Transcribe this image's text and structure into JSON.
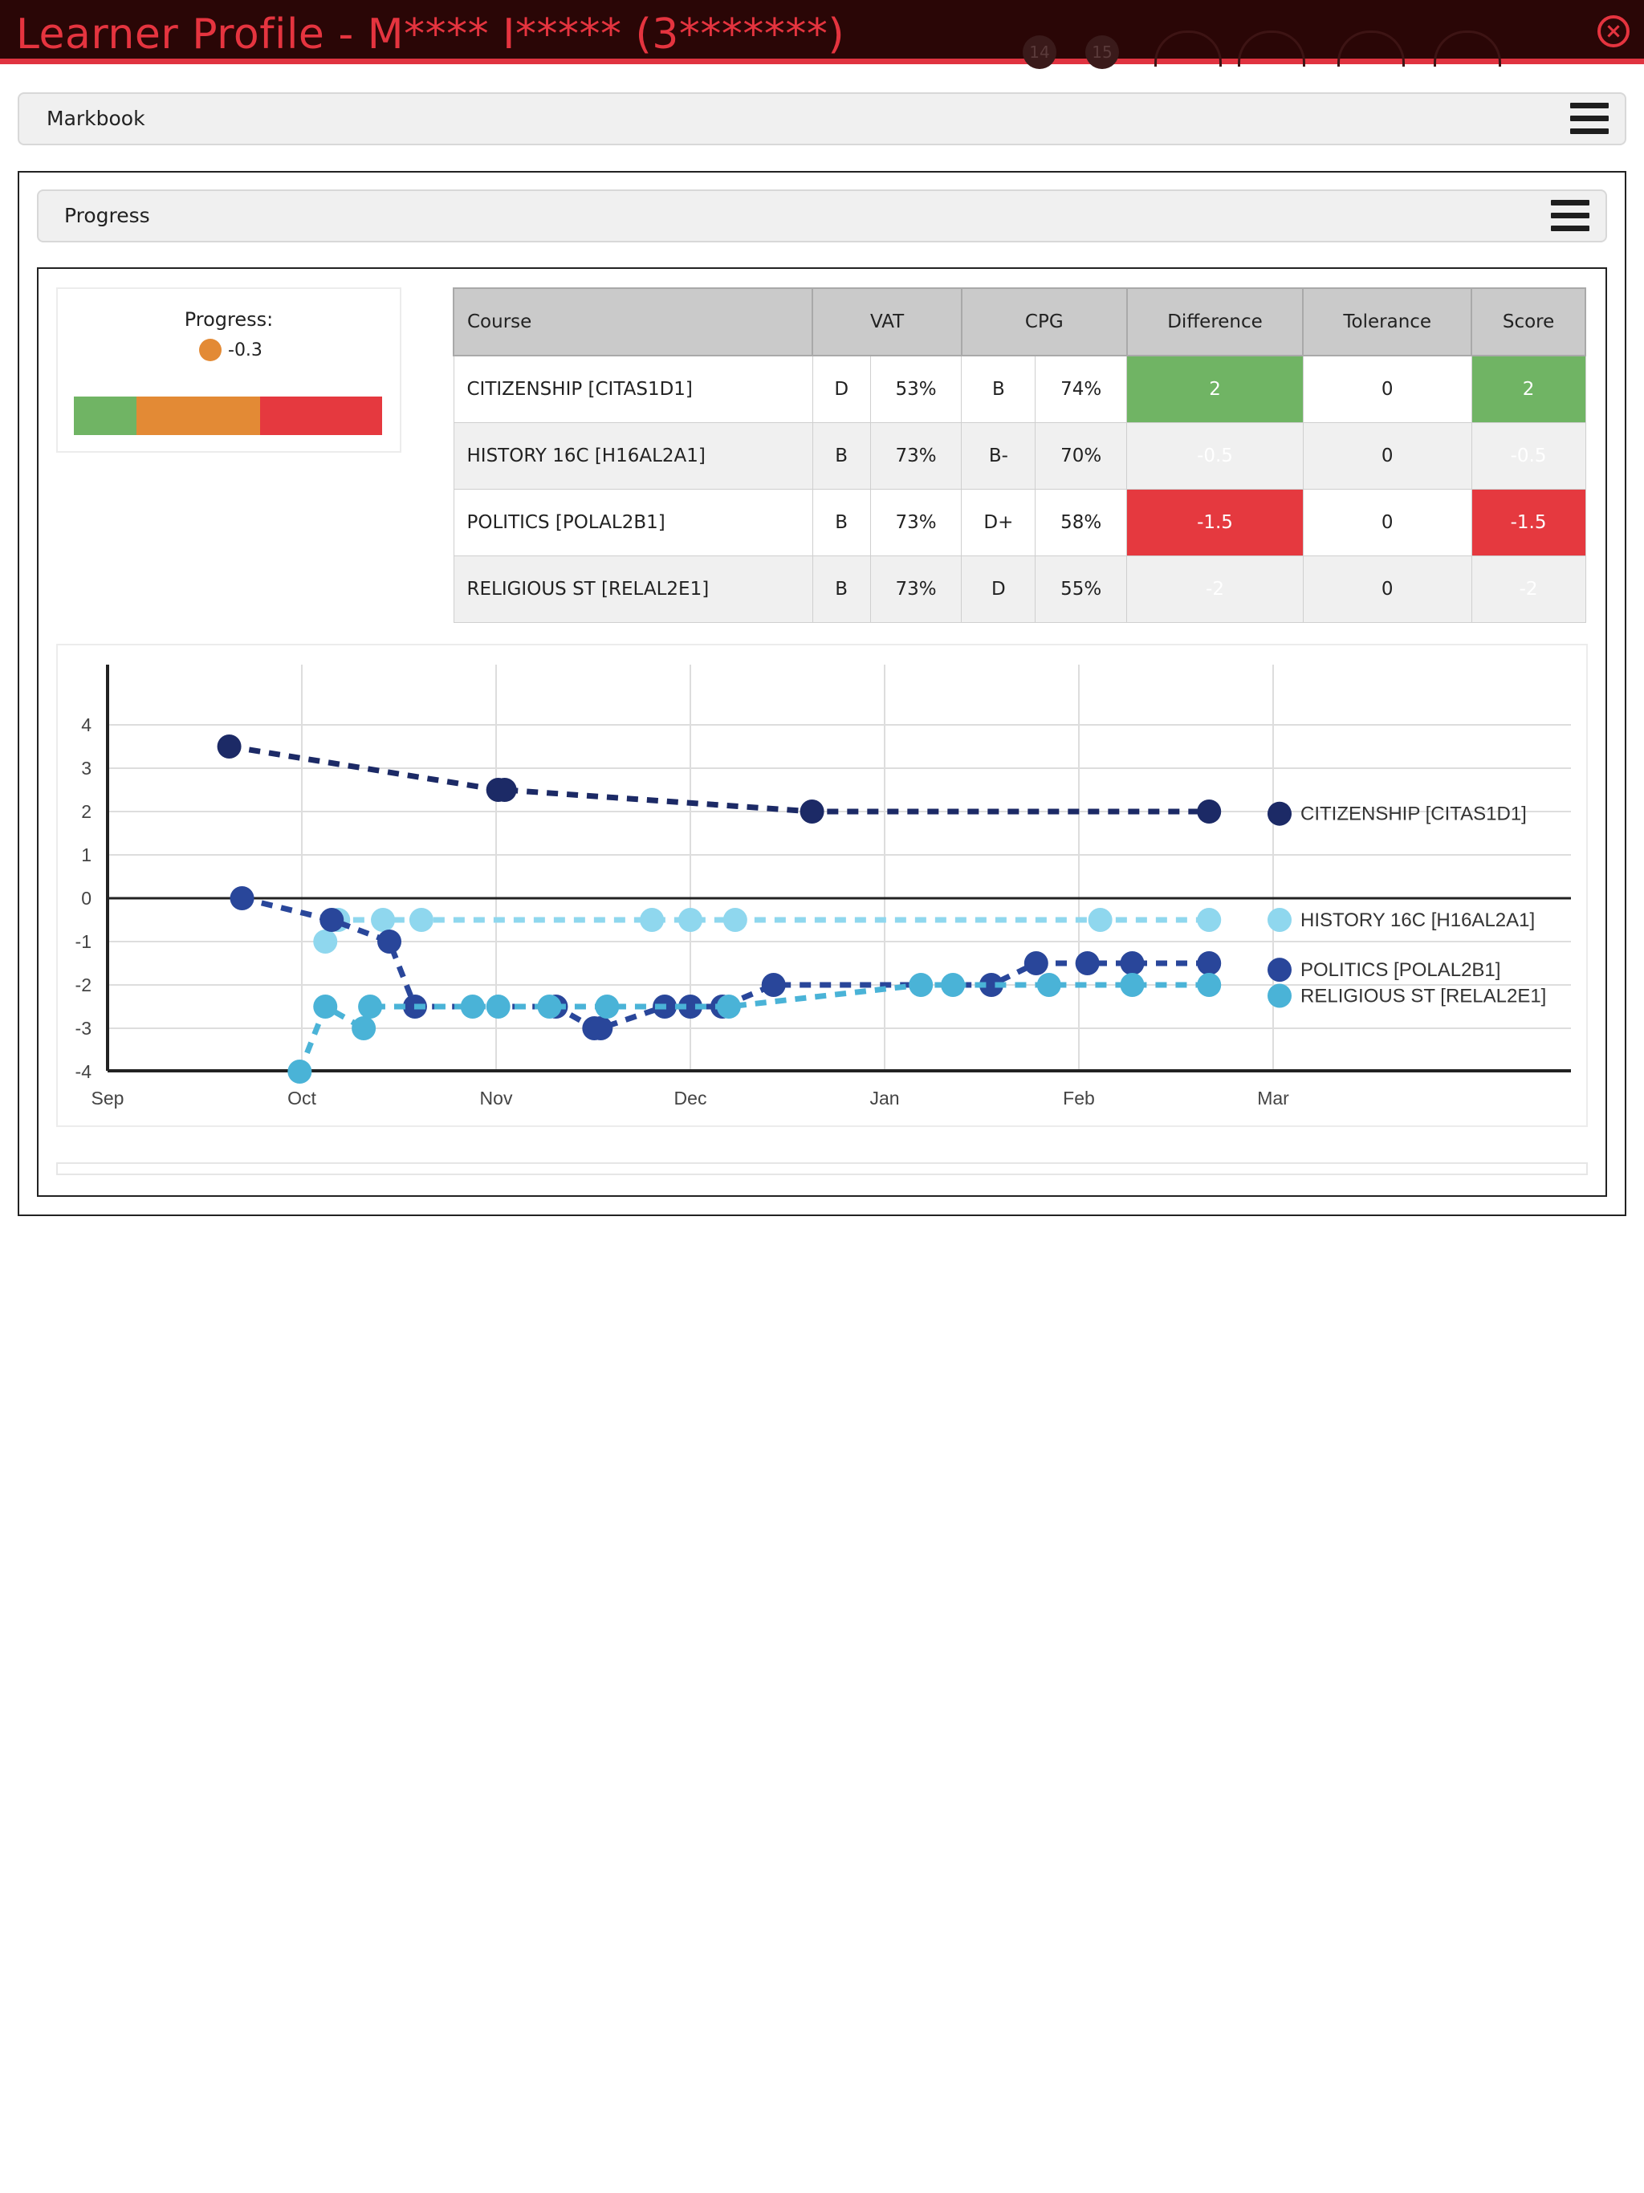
{
  "window": {
    "title": "Learner Profile - M**** I***** (3*******)",
    "badges": [
      "14",
      "15"
    ]
  },
  "markbook": {
    "label": "Markbook"
  },
  "progress_panel": {
    "label": "Progress"
  },
  "progress_summary": {
    "title": "Progress:",
    "value": "-0.3",
    "indicator_color": "#e38a35",
    "bar_colors": [
      "#70b464",
      "#e38a35",
      "#e5393f"
    ]
  },
  "grades_table": {
    "headers": {
      "course": "Course",
      "vat": "VAT",
      "cpg": "CPG",
      "difference": "Difference",
      "tolerance": "Tolerance",
      "score": "Score"
    },
    "rows": [
      {
        "course": "CITIZENSHIP [CITAS1D1]",
        "vat_grade": "D",
        "vat_pct": "53%",
        "cpg_grade": "B",
        "cpg_pct": "74%",
        "difference": "2",
        "tolerance": "0",
        "score": "2",
        "status": "green"
      },
      {
        "course": "HISTORY 16C [H16AL2A1]",
        "vat_grade": "B",
        "vat_pct": "73%",
        "cpg_grade": "B-",
        "cpg_pct": "70%",
        "difference": "-0.5",
        "tolerance": "0",
        "score": "-0.5",
        "status": "orange"
      },
      {
        "course": "POLITICS [POLAL2B1]",
        "vat_grade": "B",
        "vat_pct": "73%",
        "cpg_grade": "D+",
        "cpg_pct": "58%",
        "difference": "-1.5",
        "tolerance": "0",
        "score": "-1.5",
        "status": "red"
      },
      {
        "course": "RELIGIOUS ST [RELAL2E1]",
        "vat_grade": "B",
        "vat_pct": "73%",
        "cpg_grade": "D",
        "cpg_pct": "55%",
        "difference": "-2",
        "tolerance": "0",
        "score": "-2",
        "status": "red"
      }
    ]
  },
  "chart_data": {
    "type": "line",
    "x_ticks": [
      "Sep",
      "Oct",
      "Nov",
      "Dec",
      "Jan",
      "Feb",
      "Mar"
    ],
    "y_ticks": [
      "4",
      "3",
      "2",
      "1",
      "0",
      "-1",
      "-2",
      "-3",
      "-4"
    ],
    "ylim": [
      -4,
      4
    ],
    "grid": true,
    "series": [
      {
        "name": "CITIZENSHIP [CITAS1D1]",
        "color": "#1c2a66",
        "x": [
          "2023-09-20",
          "2023-11-01",
          "2023-11-02",
          "2023-12-20",
          "2024-02-20"
        ],
        "y": [
          3.5,
          2.5,
          2.5,
          2,
          2
        ],
        "end_value": 1.95
      },
      {
        "name": "HISTORY 16C [H16AL2A1]",
        "color": "#8fd7ee",
        "x": [
          "2023-10-05",
          "2023-10-07",
          "2023-10-14",
          "2023-10-20",
          "2023-11-25",
          "2023-12-01",
          "2023-12-08",
          "2024-02-03",
          "2024-02-20"
        ],
        "y": [
          -1,
          -0.5,
          -0.5,
          -0.5,
          -0.5,
          -0.5,
          -0.5,
          -0.5,
          -0.5
        ],
        "end_value": -0.5
      },
      {
        "name": "POLITICS [POLAL2B1]",
        "color": "#29469a",
        "x": [
          "2023-09-22",
          "2023-10-06",
          "2023-10-15",
          "2023-10-19",
          "2023-11-10",
          "2023-11-16",
          "2023-11-17",
          "2023-11-27",
          "2023-12-01",
          "2023-12-06",
          "2023-12-14",
          "2024-01-17",
          "2024-01-24",
          "2024-02-01",
          "2024-02-08",
          "2024-02-20"
        ],
        "y": [
          0,
          -0.5,
          -1,
          -2.5,
          -2.5,
          -3,
          -3,
          -2.5,
          -2.5,
          -2.5,
          -2,
          -2,
          -1.5,
          -1.5,
          -1.5,
          -1.5
        ],
        "end_value": -1.65
      },
      {
        "name": "RELIGIOUS ST [RELAL2E1]",
        "color": "#4ab3d7",
        "x": [
          "2023-10-01",
          "2023-10-05",
          "2023-10-11",
          "2023-10-12",
          "2023-10-28",
          "2023-11-01",
          "2023-11-09",
          "2023-11-18",
          "2023-12-07",
          "2024-01-06",
          "2024-01-11",
          "2024-01-26",
          "2024-02-08",
          "2024-02-20"
        ],
        "y": [
          -4,
          -2.5,
          -3,
          -2.5,
          -2.5,
          -2.5,
          -2.5,
          -2.5,
          -2.5,
          -2,
          -2,
          -2,
          -2,
          -2
        ],
        "end_value": -2.25
      }
    ]
  }
}
